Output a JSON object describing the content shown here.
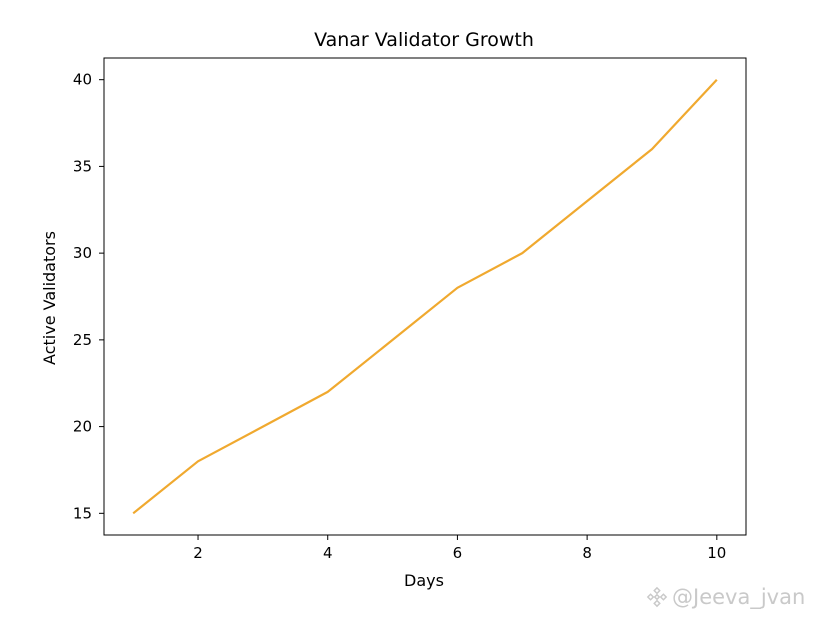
{
  "chart_data": {
    "type": "line",
    "title": "Vanar Validator Growth",
    "xlabel": "Days",
    "ylabel": "Active Validators",
    "x": [
      1,
      2,
      3,
      4,
      5,
      6,
      7,
      8,
      9,
      10
    ],
    "series": [
      {
        "values": [
          15,
          18,
          20,
          22,
          25,
          28,
          30,
          33,
          36,
          40
        ]
      }
    ],
    "xticks": [
      2,
      4,
      6,
      8,
      10
    ],
    "yticks": [
      15,
      20,
      25,
      30,
      35,
      40
    ],
    "xlim": [
      0.55,
      10.45
    ],
    "ylim": [
      13.75,
      41.25
    ],
    "grid": false,
    "line_color": "#f0a92f"
  },
  "watermark": {
    "text": "@Jeeva_jvan",
    "icon": "binance-logo-icon"
  }
}
